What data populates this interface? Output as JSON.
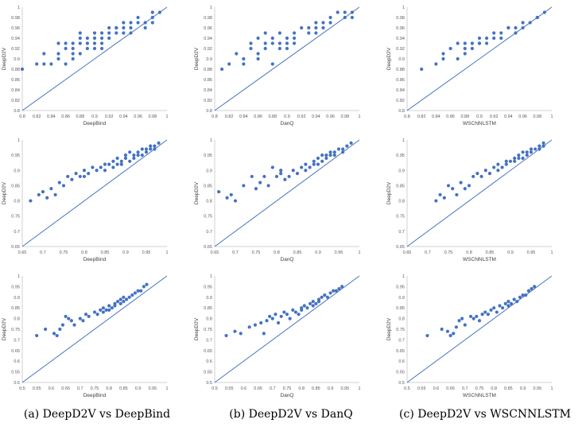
{
  "style": {
    "point_color": "#4472C4",
    "line_color": "#4472C4",
    "grid": false
  },
  "captions": [
    "(a) DeepD2V vs DeepBind",
    "(b) DeepD2V vs DanQ",
    "(c) DeepD2V vs WSCNNLSTM"
  ],
  "chart_data": [
    {
      "type": "scatter",
      "xlabel": "DeepBind",
      "ylabel": "DeepD2V",
      "xlim": [
        0.8,
        1
      ],
      "ylim": [
        0.8,
        1
      ],
      "ticks": [
        "0.8",
        "0.82",
        "0.84",
        "0.86",
        "0.88",
        "0.9",
        "0.92",
        "0.94",
        "0.96",
        "0.98",
        "1"
      ],
      "reference_line": "y=x",
      "x": [
        0.8,
        0.82,
        0.83,
        0.83,
        0.84,
        0.85,
        0.85,
        0.85,
        0.86,
        0.86,
        0.86,
        0.87,
        0.87,
        0.87,
        0.87,
        0.88,
        0.88,
        0.88,
        0.88,
        0.89,
        0.89,
        0.89,
        0.9,
        0.9,
        0.9,
        0.9,
        0.91,
        0.91,
        0.91,
        0.91,
        0.92,
        0.92,
        0.92,
        0.93,
        0.93,
        0.93,
        0.94,
        0.94,
        0.94,
        0.95,
        0.95,
        0.95,
        0.96,
        0.96,
        0.97,
        0.97,
        0.98,
        0.98,
        0.98,
        0.99
      ],
      "y": [
        0.88,
        0.89,
        0.91,
        0.89,
        0.89,
        0.93,
        0.9,
        0.91,
        0.92,
        0.93,
        0.89,
        0.91,
        0.92,
        0.93,
        0.9,
        0.91,
        0.94,
        0.95,
        0.93,
        0.92,
        0.94,
        0.93,
        0.93,
        0.94,
        0.92,
        0.95,
        0.93,
        0.94,
        0.95,
        0.92,
        0.95,
        0.96,
        0.94,
        0.95,
        0.96,
        0.96,
        0.97,
        0.95,
        0.96,
        0.96,
        0.95,
        0.97,
        0.97,
        0.98,
        0.97,
        0.96,
        0.97,
        0.98,
        0.99,
        0.99
      ]
    },
    {
      "type": "scatter",
      "xlabel": "DanQ",
      "ylabel": "DeepD2V",
      "xlim": [
        0.8,
        1
      ],
      "ylim": [
        0.8,
        1
      ],
      "ticks": [
        "0.8",
        "0.82",
        "0.84",
        "0.86",
        "0.88",
        "0.9",
        "0.92",
        "0.94",
        "0.96",
        "0.98",
        "1"
      ],
      "reference_line": "y=x",
      "x": [
        0.81,
        0.82,
        0.83,
        0.84,
        0.84,
        0.85,
        0.85,
        0.86,
        0.86,
        0.86,
        0.87,
        0.87,
        0.87,
        0.88,
        0.88,
        0.88,
        0.89,
        0.89,
        0.89,
        0.9,
        0.9,
        0.9,
        0.91,
        0.91,
        0.91,
        0.92,
        0.93,
        0.93,
        0.94,
        0.94,
        0.94,
        0.95,
        0.95,
        0.96,
        0.96,
        0.97,
        0.98,
        0.98,
        0.99,
        0.99
      ],
      "y": [
        0.88,
        0.89,
        0.91,
        0.89,
        0.9,
        0.92,
        0.93,
        0.9,
        0.91,
        0.94,
        0.92,
        0.93,
        0.95,
        0.89,
        0.93,
        0.94,
        0.93,
        0.95,
        0.92,
        0.92,
        0.93,
        0.94,
        0.94,
        0.93,
        0.95,
        0.96,
        0.95,
        0.96,
        0.96,
        0.97,
        0.95,
        0.97,
        0.96,
        0.97,
        0.98,
        0.99,
        0.98,
        0.99,
        0.99,
        0.98
      ]
    },
    {
      "type": "scatter",
      "xlabel": "WSCNNLSTM",
      "ylabel": "DeepD2V",
      "xlim": [
        0.8,
        1
      ],
      "ylim": [
        0.8,
        1
      ],
      "ticks": [
        "0.8",
        "0.82",
        "0.84",
        "0.86",
        "0.88",
        "0.9",
        "0.92",
        "0.94",
        "0.96",
        "0.98",
        "1"
      ],
      "reference_line": "y=x",
      "x": [
        0.82,
        0.84,
        0.85,
        0.85,
        0.86,
        0.87,
        0.87,
        0.88,
        0.88,
        0.88,
        0.89,
        0.89,
        0.9,
        0.9,
        0.9,
        0.91,
        0.91,
        0.92,
        0.92,
        0.93,
        0.93,
        0.94,
        0.94,
        0.95,
        0.95,
        0.96,
        0.96,
        0.97,
        0.98,
        0.98,
        0.99
      ],
      "y": [
        0.88,
        0.89,
        0.9,
        0.91,
        0.92,
        0.9,
        0.93,
        0.91,
        0.92,
        0.93,
        0.93,
        0.92,
        0.93,
        0.94,
        0.93,
        0.93,
        0.94,
        0.94,
        0.95,
        0.95,
        0.94,
        0.96,
        0.96,
        0.96,
        0.95,
        0.97,
        0.96,
        0.97,
        0.98,
        0.98,
        0.99
      ]
    },
    {
      "type": "scatter",
      "xlabel": "DeepBind",
      "ylabel": "DeepD2V",
      "xlim": [
        0.65,
        1
      ],
      "ylim": [
        0.65,
        1
      ],
      "ticks": [
        "0.65",
        "0.7",
        "0.75",
        "0.8",
        "0.85",
        "0.9",
        "0.95",
        "1"
      ],
      "reference_line": "y=x",
      "x": [
        0.67,
        0.69,
        0.7,
        0.71,
        0.72,
        0.73,
        0.74,
        0.75,
        0.76,
        0.77,
        0.78,
        0.79,
        0.8,
        0.8,
        0.81,
        0.82,
        0.83,
        0.84,
        0.85,
        0.85,
        0.86,
        0.87,
        0.87,
        0.88,
        0.88,
        0.89,
        0.89,
        0.9,
        0.9,
        0.91,
        0.91,
        0.92,
        0.92,
        0.93,
        0.93,
        0.94,
        0.94,
        0.95,
        0.95,
        0.96,
        0.96,
        0.97,
        0.97,
        0.98
      ],
      "y": [
        0.8,
        0.82,
        0.83,
        0.81,
        0.84,
        0.82,
        0.86,
        0.85,
        0.88,
        0.87,
        0.89,
        0.88,
        0.9,
        0.88,
        0.89,
        0.91,
        0.9,
        0.91,
        0.9,
        0.92,
        0.92,
        0.91,
        0.93,
        0.92,
        0.94,
        0.93,
        0.92,
        0.94,
        0.95,
        0.93,
        0.96,
        0.94,
        0.95,
        0.95,
        0.96,
        0.95,
        0.97,
        0.96,
        0.97,
        0.97,
        0.98,
        0.98,
        0.97,
        0.99
      ]
    },
    {
      "type": "scatter",
      "xlabel": "DanQ",
      "ylabel": "DeepD2V",
      "xlim": [
        0.65,
        1
      ],
      "ylim": [
        0.65,
        1
      ],
      "ticks": [
        "0.65",
        "0.7",
        "0.75",
        "0.8",
        "0.85",
        "0.9",
        "0.95",
        "1"
      ],
      "reference_line": "y=x",
      "x": [
        0.66,
        0.68,
        0.69,
        0.7,
        0.72,
        0.74,
        0.75,
        0.76,
        0.77,
        0.78,
        0.79,
        0.8,
        0.81,
        0.81,
        0.82,
        0.83,
        0.84,
        0.85,
        0.86,
        0.87,
        0.87,
        0.88,
        0.89,
        0.89,
        0.9,
        0.9,
        0.91,
        0.91,
        0.92,
        0.92,
        0.93,
        0.93,
        0.94,
        0.94,
        0.95,
        0.96,
        0.96,
        0.97,
        0.98
      ],
      "y": [
        0.83,
        0.81,
        0.82,
        0.8,
        0.85,
        0.88,
        0.84,
        0.86,
        0.88,
        0.85,
        0.91,
        0.88,
        0.89,
        0.9,
        0.87,
        0.88,
        0.9,
        0.89,
        0.91,
        0.9,
        0.92,
        0.91,
        0.93,
        0.92,
        0.92,
        0.94,
        0.93,
        0.95,
        0.94,
        0.95,
        0.95,
        0.96,
        0.96,
        0.95,
        0.97,
        0.96,
        0.97,
        0.98,
        0.99
      ]
    },
    {
      "type": "scatter",
      "xlabel": "WSCNNLSTM",
      "ylabel": "DeepD2V",
      "xlim": [
        0.65,
        1
      ],
      "ylim": [
        0.65,
        1
      ],
      "ticks": [
        "0.65",
        "0.7",
        "0.75",
        "0.8",
        "0.85",
        "0.9",
        "0.95",
        "1"
      ],
      "reference_line": "y=x",
      "x": [
        0.72,
        0.73,
        0.74,
        0.75,
        0.76,
        0.77,
        0.78,
        0.79,
        0.8,
        0.81,
        0.82,
        0.83,
        0.84,
        0.85,
        0.86,
        0.87,
        0.87,
        0.88,
        0.89,
        0.89,
        0.9,
        0.91,
        0.91,
        0.92,
        0.92,
        0.93,
        0.93,
        0.94,
        0.94,
        0.95,
        0.95,
        0.96,
        0.97,
        0.97,
        0.98,
        0.98
      ],
      "y": [
        0.8,
        0.82,
        0.81,
        0.85,
        0.84,
        0.82,
        0.86,
        0.84,
        0.85,
        0.88,
        0.89,
        0.88,
        0.9,
        0.89,
        0.91,
        0.9,
        0.92,
        0.91,
        0.93,
        0.92,
        0.93,
        0.93,
        0.94,
        0.94,
        0.95,
        0.94,
        0.96,
        0.95,
        0.96,
        0.96,
        0.97,
        0.97,
        0.97,
        0.98,
        0.98,
        0.99
      ]
    },
    {
      "type": "scatter",
      "xlabel": "DeepBind",
      "ylabel": "DeepD2V",
      "xlim": [
        0.5,
        1
      ],
      "ylim": [
        0.5,
        1
      ],
      "ticks": [
        "0.5",
        "0.55",
        "0.6",
        "0.65",
        "0.7",
        "0.75",
        "0.8",
        "0.85",
        "0.9",
        "0.95",
        "1"
      ],
      "reference_line": "y=x",
      "x": [
        0.55,
        0.58,
        0.61,
        0.62,
        0.63,
        0.64,
        0.65,
        0.66,
        0.67,
        0.68,
        0.7,
        0.71,
        0.72,
        0.73,
        0.75,
        0.76,
        0.77,
        0.78,
        0.78,
        0.79,
        0.8,
        0.8,
        0.81,
        0.82,
        0.82,
        0.83,
        0.84,
        0.84,
        0.85,
        0.85,
        0.86,
        0.87,
        0.88,
        0.89,
        0.9,
        0.91,
        0.92,
        0.93
      ],
      "y": [
        0.72,
        0.75,
        0.73,
        0.72,
        0.75,
        0.77,
        0.81,
        0.8,
        0.79,
        0.77,
        0.8,
        0.79,
        0.82,
        0.81,
        0.83,
        0.82,
        0.84,
        0.83,
        0.85,
        0.84,
        0.86,
        0.84,
        0.85,
        0.87,
        0.86,
        0.88,
        0.87,
        0.89,
        0.9,
        0.88,
        0.89,
        0.9,
        0.91,
        0.92,
        0.93,
        0.93,
        0.95,
        0.96
      ]
    },
    {
      "type": "scatter",
      "xlabel": "DanQ",
      "ylabel": "DeepD2V",
      "xlim": [
        0.5,
        1
      ],
      "ylim": [
        0.5,
        1
      ],
      "ticks": [
        "0.5",
        "0.55",
        "0.6",
        "0.65",
        "0.7",
        "0.75",
        "0.8",
        "0.85",
        "0.9",
        "0.95",
        "1"
      ],
      "reference_line": "y=x",
      "x": [
        0.54,
        0.57,
        0.59,
        0.62,
        0.64,
        0.66,
        0.67,
        0.68,
        0.69,
        0.7,
        0.71,
        0.72,
        0.73,
        0.74,
        0.75,
        0.76,
        0.77,
        0.78,
        0.79,
        0.8,
        0.8,
        0.81,
        0.82,
        0.83,
        0.84,
        0.84,
        0.85,
        0.86,
        0.86,
        0.87,
        0.88,
        0.89,
        0.9,
        0.91,
        0.92,
        0.93,
        0.94
      ],
      "y": [
        0.72,
        0.74,
        0.73,
        0.76,
        0.77,
        0.78,
        0.73,
        0.79,
        0.81,
        0.8,
        0.82,
        0.78,
        0.81,
        0.83,
        0.82,
        0.8,
        0.84,
        0.83,
        0.82,
        0.85,
        0.84,
        0.86,
        0.85,
        0.87,
        0.86,
        0.88,
        0.87,
        0.89,
        0.88,
        0.9,
        0.91,
        0.9,
        0.92,
        0.93,
        0.93,
        0.94,
        0.95
      ]
    },
    {
      "type": "scatter",
      "xlabel": "WSCNNLSTM",
      "ylabel": "DeepD2V",
      "xlim": [
        0.5,
        1
      ],
      "ylim": [
        0.5,
        1
      ],
      "ticks": [
        "0.5",
        "0.55",
        "0.6",
        "0.65",
        "0.7",
        "0.75",
        "0.8",
        "0.85",
        "0.9",
        "0.95",
        "1"
      ],
      "reference_line": "y=x",
      "x": [
        0.57,
        0.62,
        0.64,
        0.65,
        0.66,
        0.67,
        0.68,
        0.69,
        0.7,
        0.72,
        0.73,
        0.74,
        0.75,
        0.76,
        0.77,
        0.78,
        0.79,
        0.8,
        0.81,
        0.82,
        0.83,
        0.84,
        0.85,
        0.85,
        0.86,
        0.87,
        0.88,
        0.89,
        0.9,
        0.91,
        0.92,
        0.93,
        0.94
      ],
      "y": [
        0.72,
        0.75,
        0.74,
        0.72,
        0.73,
        0.76,
        0.79,
        0.8,
        0.77,
        0.81,
        0.8,
        0.81,
        0.79,
        0.82,
        0.83,
        0.82,
        0.84,
        0.85,
        0.83,
        0.86,
        0.85,
        0.87,
        0.86,
        0.88,
        0.87,
        0.89,
        0.88,
        0.9,
        0.91,
        0.91,
        0.93,
        0.94,
        0.95
      ]
    }
  ]
}
